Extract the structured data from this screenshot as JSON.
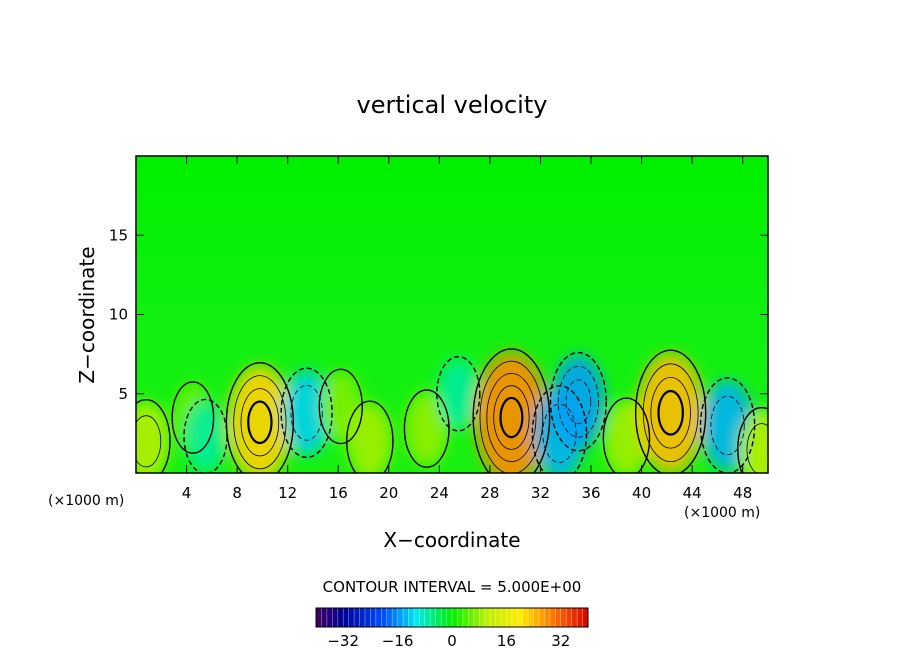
{
  "chart_data": {
    "type": "heatmap",
    "title": "vertical velocity",
    "xlabel": "X−coordinate",
    "ylabel": "Z−coordinate",
    "x_unit_left": "(×1000 m)",
    "x_unit_right": "(×1000 m)",
    "xlim": [
      0,
      50
    ],
    "ylim": [
      0,
      20
    ],
    "xticks": [
      "4",
      "8",
      "12",
      "16",
      "20",
      "24",
      "28",
      "32",
      "36",
      "40",
      "44",
      "48"
    ],
    "yticks": [
      "5",
      "10",
      "15"
    ],
    "contour_interval_text": "CONTOUR INTERVAL = 5.000E+00",
    "colorbar": {
      "range": [
        -40,
        40
      ],
      "ticks": [
        "−32",
        "−16",
        "0",
        "16",
        "32"
      ]
    },
    "cells": [
      {
        "x": 0.8,
        "z": 2.0,
        "w": 10
      },
      {
        "x": 4.5,
        "z": 3.5,
        "w": 6
      },
      {
        "x": 5.5,
        "z": 2.3,
        "w": -7
      },
      {
        "x": 9.8,
        "z": 3.2,
        "w": 22
      },
      {
        "x": 13.5,
        "z": 3.8,
        "w": -12
      },
      {
        "x": 16.2,
        "z": 4.2,
        "w": 7
      },
      {
        "x": 18.5,
        "z": 2.0,
        "w": 9
      },
      {
        "x": 23.0,
        "z": 2.8,
        "w": 8
      },
      {
        "x": 25.5,
        "z": 5.0,
        "w": -7
      },
      {
        "x": 29.7,
        "z": 3.5,
        "w": 28
      },
      {
        "x": 33.5,
        "z": 2.5,
        "w": -14
      },
      {
        "x": 35.0,
        "z": 4.5,
        "w": -15
      },
      {
        "x": 38.8,
        "z": 2.2,
        "w": 9
      },
      {
        "x": 42.3,
        "z": 3.8,
        "w": 24
      },
      {
        "x": 46.8,
        "z": 3.0,
        "w": -14
      },
      {
        "x": 49.5,
        "z": 1.5,
        "w": 10
      }
    ]
  }
}
